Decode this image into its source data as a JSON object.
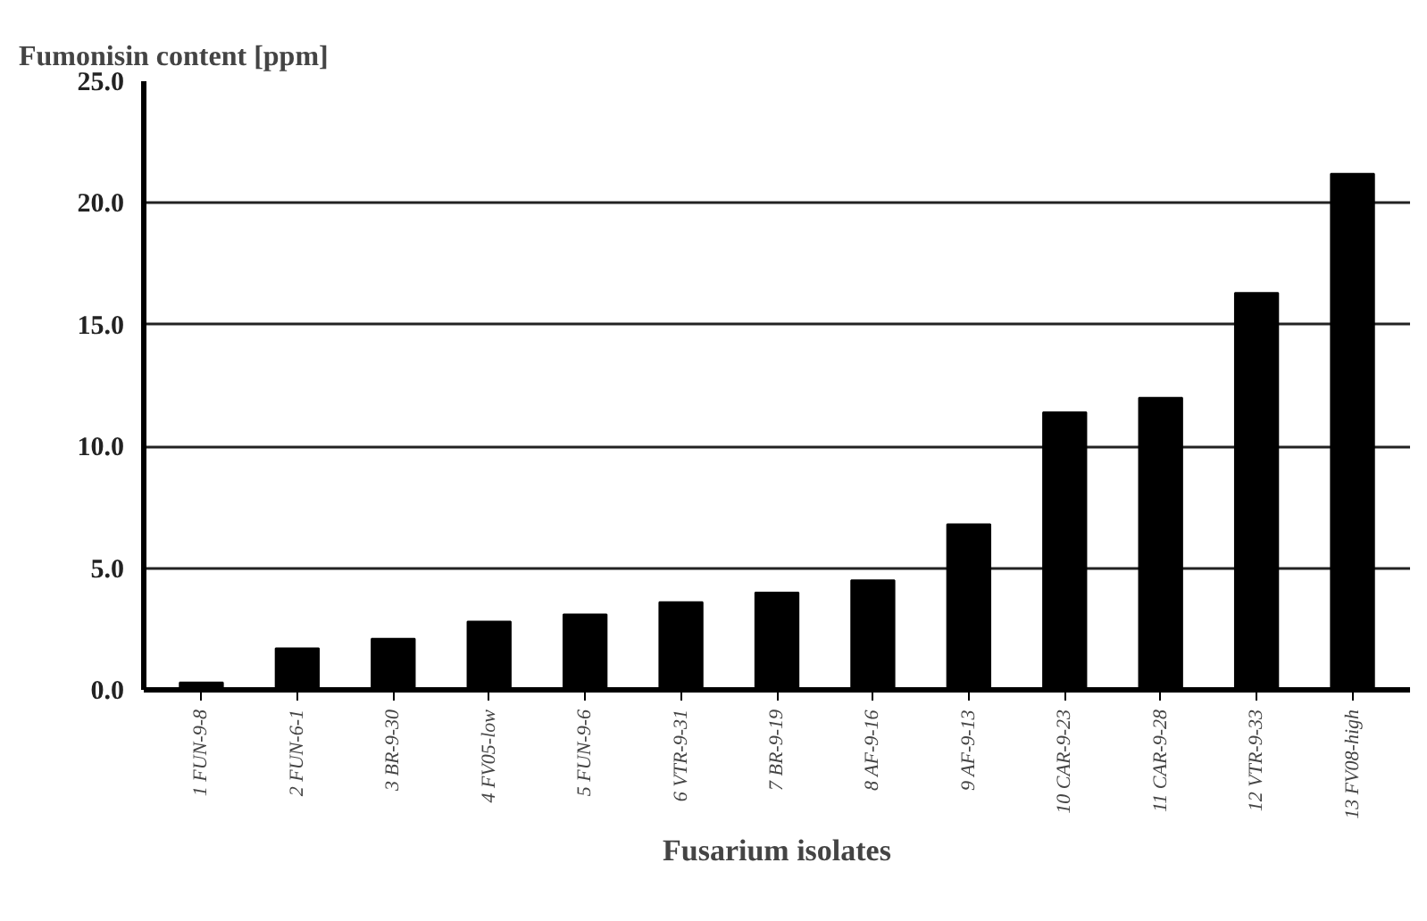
{
  "chart_data": {
    "type": "bar",
    "ylabel": "Fumonisin content [ppm]",
    "xlabel": "Fusarium isolates",
    "categories": [
      "1 FUN-9-8",
      "2 FUN-6-1",
      "3 BR-9-30",
      "4 FV05-low",
      "5 FUN-9-6",
      "6 VTR-9-31",
      "7 BR-9-19",
      "8 AF-9-16",
      "9 AF-9-13",
      "10 CAR-9-23",
      "11 CAR-9-28",
      "12 VTR-9-33",
      "13 FV08-high"
    ],
    "values": [
      0.3,
      1.7,
      2.1,
      2.8,
      3.1,
      3.6,
      4.0,
      4.5,
      6.8,
      11.4,
      12.0,
      16.3,
      21.2
    ],
    "color": "#000000",
    "ylim": [
      0,
      25
    ],
    "yticks": [
      {
        "value": 0,
        "label": "0.0"
      },
      {
        "value": 5,
        "label": "5.0"
      },
      {
        "value": 10,
        "label": "10.0"
      },
      {
        "value": 15,
        "label": "15.0"
      },
      {
        "value": 20,
        "label": "20.0"
      },
      {
        "value": 25,
        "label": "25.0"
      }
    ],
    "grid": "y"
  }
}
